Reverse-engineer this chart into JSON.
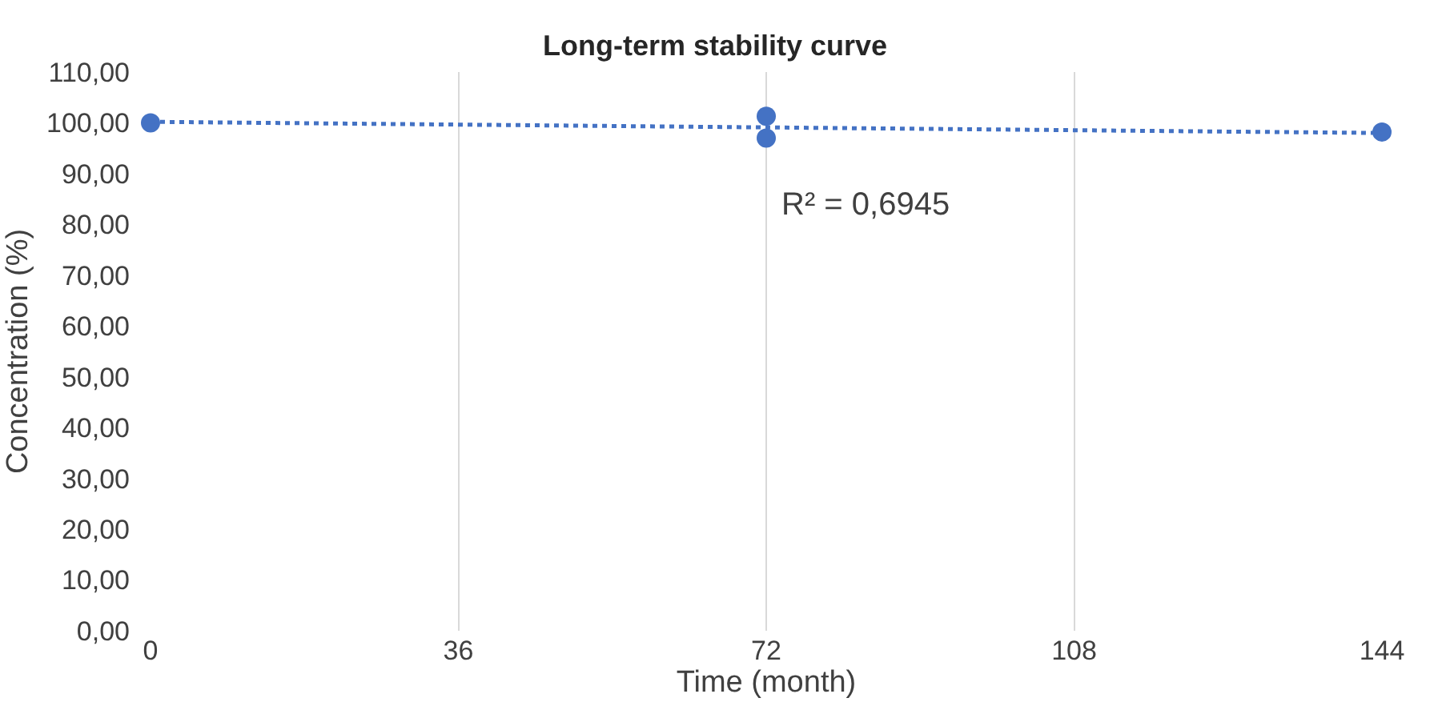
{
  "chart_data": {
    "type": "scatter",
    "title": "Long-term stability curve",
    "xlabel": "Time (month)",
    "ylabel": "Concentration (%)",
    "series": [
      {
        "color": "#4472c4",
        "marker": "circle",
        "x": [
          0,
          72,
          72,
          144
        ],
        "values": [
          100,
          101.3,
          97,
          98.2
        ]
      },
      {
        "type": "line",
        "color": "#4472c4",
        "marker": "none",
        "line_style": "dotted",
        "x": [
          0,
          144
        ],
        "values": [
          100.2,
          98
        ]
      }
    ],
    "annotations": [
      "R² = 0,6945"
    ],
    "xlim": [
      0,
      144
    ],
    "xticks": [
      0,
      36,
      72,
      108,
      144
    ],
    "ylim": [
      0,
      110
    ],
    "yticks": [
      {
        "value": 0,
        "label": "0,00"
      },
      {
        "value": 10,
        "label": "10,00"
      },
      {
        "value": 20,
        "label": "20,00"
      },
      {
        "value": 30,
        "label": "30,00"
      },
      {
        "value": 40,
        "label": "40,00"
      },
      {
        "value": 50,
        "label": "50,00"
      },
      {
        "value": 60,
        "label": "60,00"
      },
      {
        "value": 70,
        "label": "70,00"
      },
      {
        "value": 80,
        "label": "80,00"
      },
      {
        "value": 90,
        "label": "90,00"
      },
      {
        "value": 100,
        "label": "100,00"
      },
      {
        "value": 110,
        "label": "110,00"
      }
    ],
    "grid": "x",
    "legend": false
  }
}
